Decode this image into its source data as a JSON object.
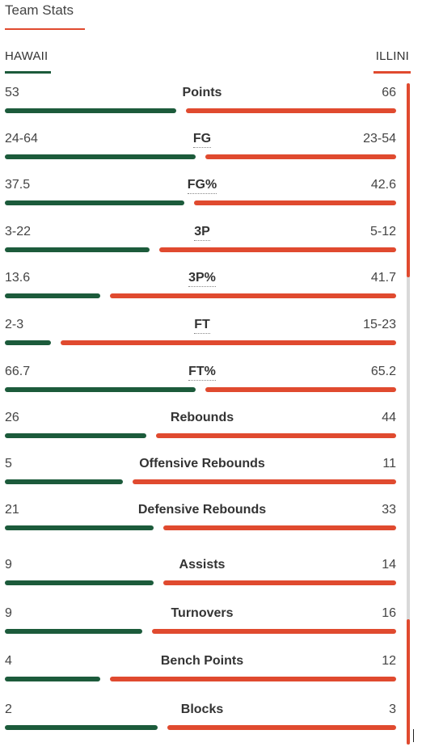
{
  "header": {
    "title": "Team Stats"
  },
  "teams": {
    "home": "HAWAII",
    "away": "ILLINI"
  },
  "colors": {
    "home": "#1c5b3b",
    "away": "#e04a2f"
  },
  "stats": [
    {
      "label": "Points",
      "home": "53",
      "away": "66",
      "dotted": false,
      "home_share": 0.45,
      "away_share": 0.55
    },
    {
      "label": "FG",
      "home": "24-64",
      "away": "23-54",
      "dotted": true,
      "home_share": 0.5,
      "away_share": 0.5
    },
    {
      "label": "FG%",
      "home": "37.5",
      "away": "42.6",
      "dotted": true,
      "home_share": 0.47,
      "away_share": 0.53
    },
    {
      "label": "3P",
      "home": "3-22",
      "away": "5-12",
      "dotted": true,
      "home_share": 0.38,
      "away_share": 0.62
    },
    {
      "label": "3P%",
      "home": "13.6",
      "away": "41.7",
      "dotted": true,
      "home_share": 0.25,
      "away_share": 0.75
    },
    {
      "label": "FT",
      "home": "2-3",
      "away": "15-23",
      "dotted": true,
      "home_share": 0.12,
      "away_share": 0.88
    },
    {
      "label": "FT%",
      "home": "66.7",
      "away": "65.2",
      "dotted": true,
      "home_share": 0.5,
      "away_share": 0.5
    },
    {
      "label": "Rebounds",
      "home": "26",
      "away": "44",
      "dotted": false,
      "home_share": 0.37,
      "away_share": 0.63
    },
    {
      "label": "Offensive Rebounds",
      "home": "5",
      "away": "11",
      "dotted": false,
      "home_share": 0.31,
      "away_share": 0.69
    },
    {
      "label": "Defensive Rebounds",
      "home": "21",
      "away": "33",
      "dotted": false,
      "home_share": 0.39,
      "away_share": 0.61
    },
    {
      "label": "Assists",
      "home": "9",
      "away": "14",
      "dotted": false,
      "home_share": 0.39,
      "away_share": 0.61
    },
    {
      "label": "Turnovers",
      "home": "9",
      "away": "16",
      "dotted": false,
      "home_share": 0.36,
      "away_share": 0.64
    },
    {
      "label": "Bench Points",
      "home": "4",
      "away": "12",
      "dotted": false,
      "home_share": 0.25,
      "away_share": 0.75
    },
    {
      "label": "Blocks",
      "home": "2",
      "away": "3",
      "dotted": false,
      "home_share": 0.4,
      "away_share": 0.6
    }
  ]
}
